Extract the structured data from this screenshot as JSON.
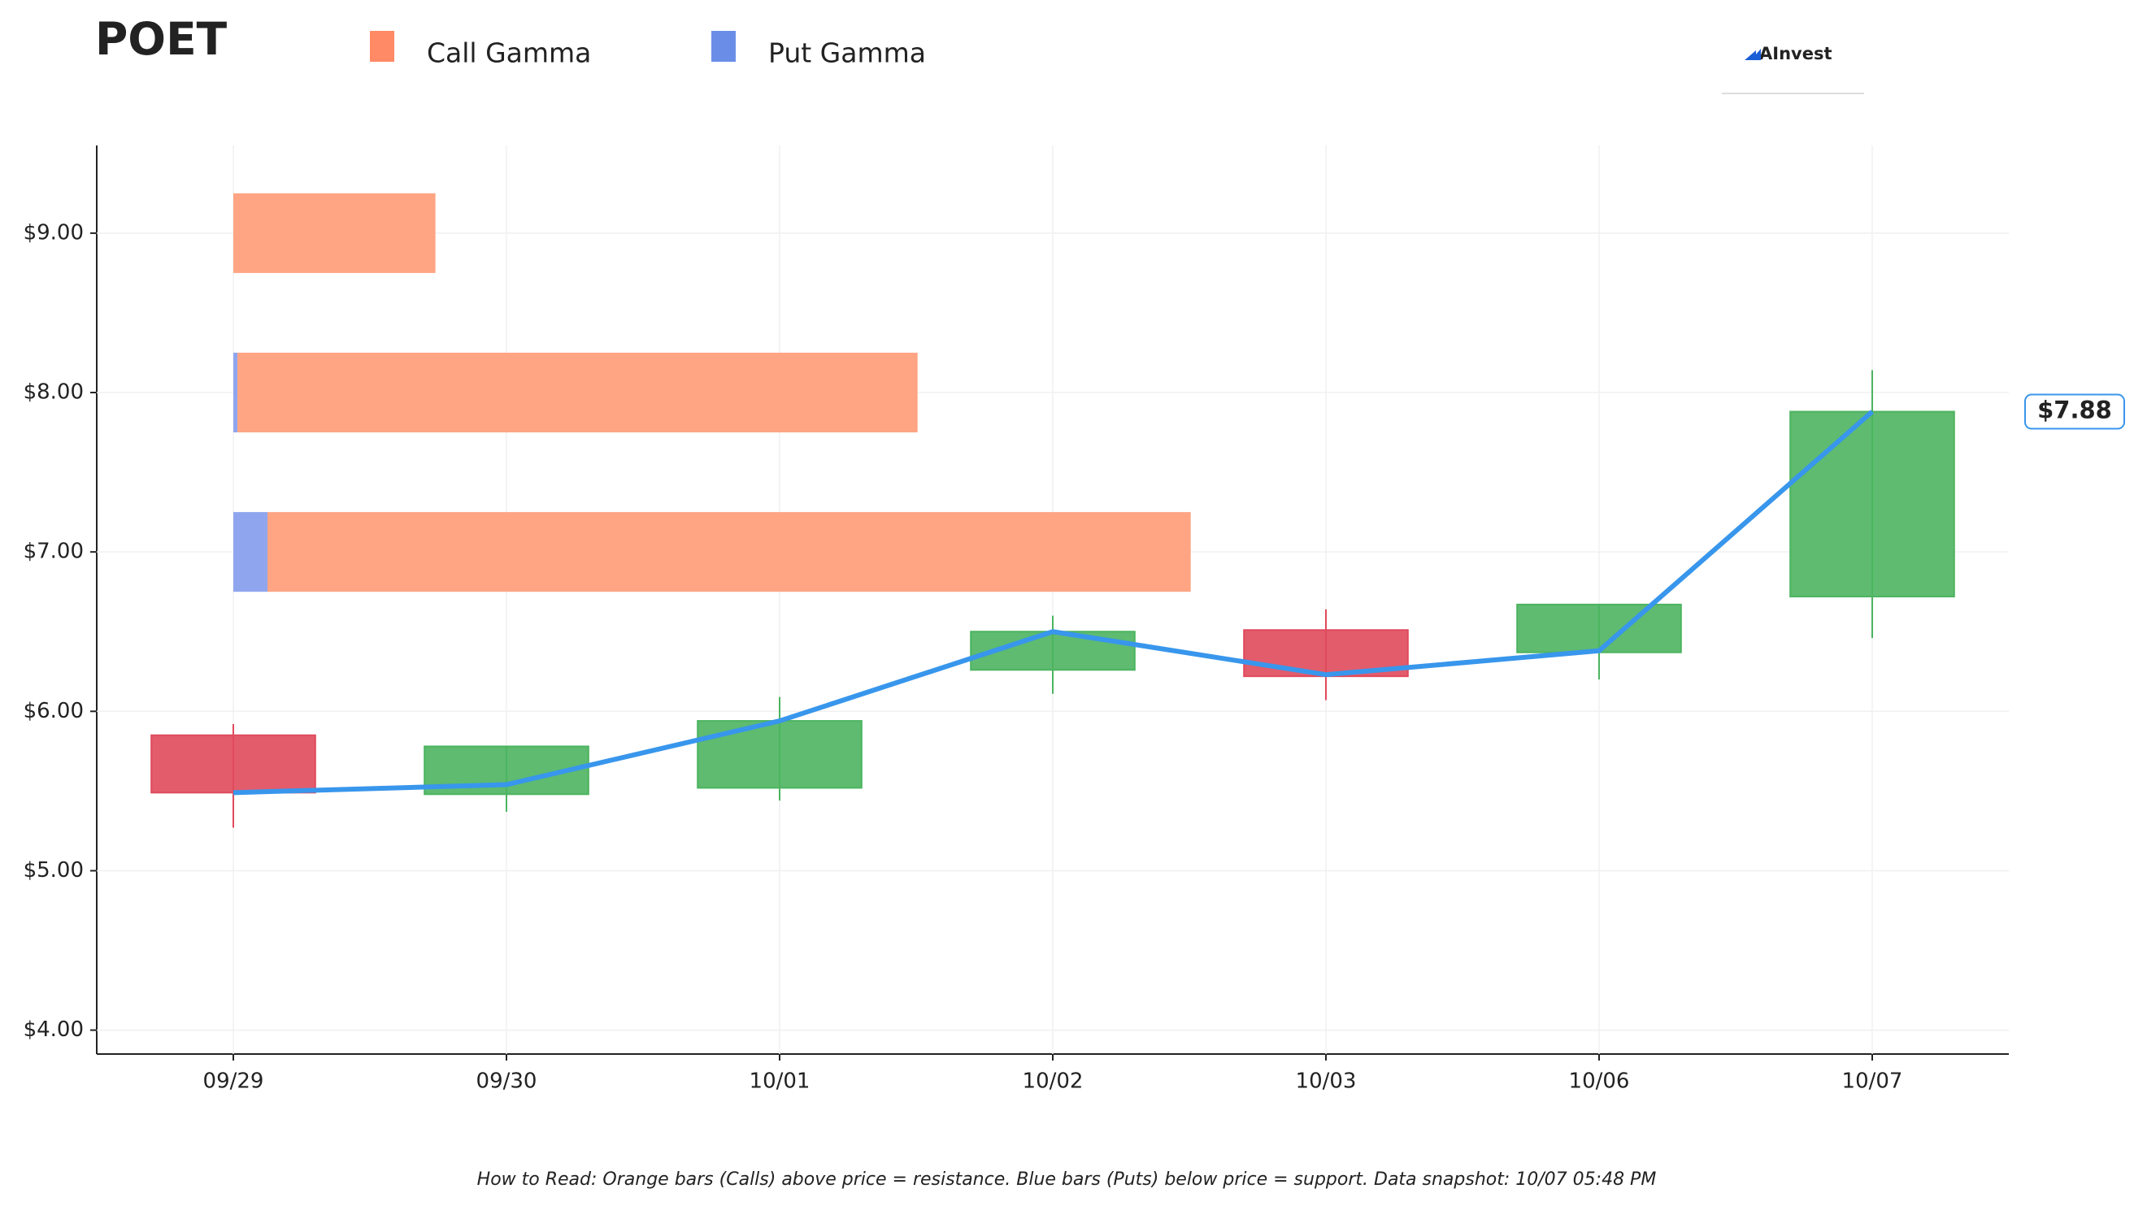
{
  "chart_data": {
    "type": "candlestick",
    "title": "POET",
    "logo": "AInvest",
    "footer": "How to Read: Orange bars (Calls) above price = resistance. Blue bars (Puts) below price = support. Data snapshot: 10/07 05:48 PM",
    "categories": [
      "09/29",
      "09/30",
      "10/01",
      "10/02",
      "10/03",
      "10/06",
      "10/07"
    ],
    "candles": {
      "open": [
        5.85,
        5.48,
        5.52,
        6.26,
        6.51,
        6.37,
        6.72
      ],
      "high": [
        5.92,
        5.78,
        6.09,
        6.6,
        6.64,
        6.67,
        8.14
      ],
      "low": [
        5.27,
        5.37,
        5.44,
        6.11,
        6.07,
        6.2,
        6.46
      ],
      "close": [
        5.49,
        5.78,
        5.94,
        6.5,
        6.22,
        6.67,
        7.88
      ],
      "up_color": "#4cb460",
      "down_color": "#e04a5c"
    },
    "line_values": [
      5.49,
      5.54,
      5.94,
      6.5,
      6.23,
      6.38,
      7.88
    ],
    "line_color": "#3896ec",
    "price_label": {
      "value": 7.88,
      "label": "$7.88"
    },
    "gamma": {
      "strikes": [
        9,
        8,
        7
      ],
      "series": [
        {
          "name": "Put Gamma",
          "color": "#6a8ee8",
          "bar_color": "#8fa6ee",
          "values": [
            0,
            0.015,
            0.125
          ]
        },
        {
          "name": "Call Gamma",
          "color": "#ff8a65",
          "bar_color": "#ffa584",
          "values": [
            0.74,
            2.49,
            3.38
          ]
        }
      ]
    },
    "ylim": [
      3.85,
      9.55
    ],
    "yticks": [
      {
        "value": 4,
        "label": "$4.00"
      },
      {
        "value": 5,
        "label": "$5.00"
      },
      {
        "value": 6,
        "label": "$6.00"
      },
      {
        "value": 7,
        "label": "$7.00"
      },
      {
        "value": 8,
        "label": "$8.00"
      },
      {
        "value": 9,
        "label": "$9.00"
      }
    ],
    "grid": true
  }
}
